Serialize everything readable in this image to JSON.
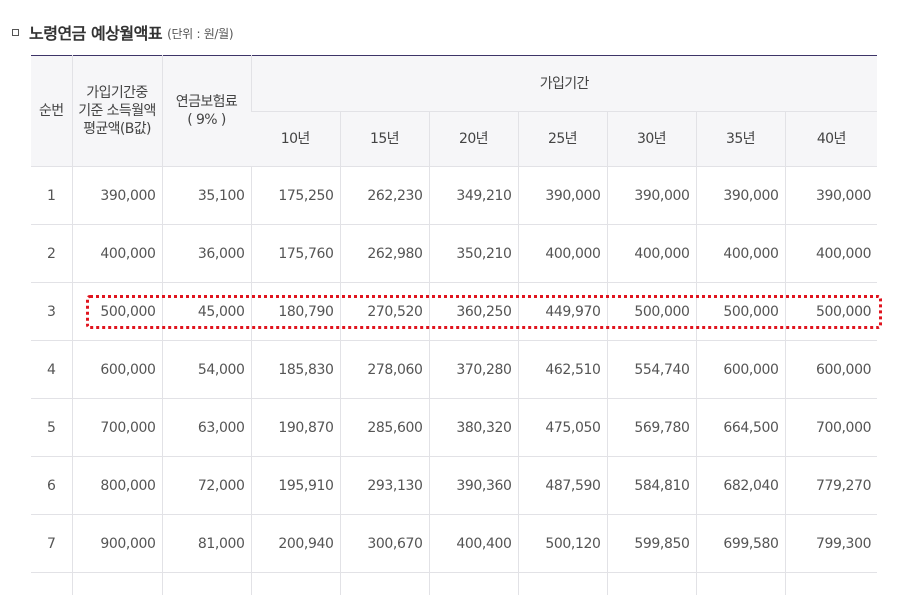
{
  "title": {
    "main": "노령연금 예상월액표",
    "unit": "(단위 : 원/월)"
  },
  "table": {
    "header": {
      "col_no": "순번",
      "col_income": "가입기간중 기준 소득월액 평균액(B값)",
      "col_premium_line1": "연금보험료",
      "col_premium_line2": "( 9% )",
      "col_period": "가입기간",
      "periods": [
        "10년",
        "15년",
        "20년",
        "25년",
        "30년",
        "35년",
        "40년"
      ]
    },
    "rows": [
      {
        "no": "1",
        "income": "390,000",
        "premium": "35,100",
        "values": [
          "175,250",
          "262,230",
          "349,210",
          "390,000",
          "390,000",
          "390,000",
          "390,000"
        ]
      },
      {
        "no": "2",
        "income": "400,000",
        "premium": "36,000",
        "values": [
          "175,760",
          "262,980",
          "350,210",
          "400,000",
          "400,000",
          "400,000",
          "400,000"
        ]
      },
      {
        "no": "3",
        "income": "500,000",
        "premium": "45,000",
        "values": [
          "180,790",
          "270,520",
          "360,250",
          "449,970",
          "500,000",
          "500,000",
          "500,000"
        ]
      },
      {
        "no": "4",
        "income": "600,000",
        "premium": "54,000",
        "values": [
          "185,830",
          "278,060",
          "370,280",
          "462,510",
          "554,740",
          "600,000",
          "600,000"
        ]
      },
      {
        "no": "5",
        "income": "700,000",
        "premium": "63,000",
        "values": [
          "190,870",
          "285,600",
          "380,320",
          "475,050",
          "569,780",
          "664,500",
          "700,000"
        ]
      },
      {
        "no": "6",
        "income": "800,000",
        "premium": "72,000",
        "values": [
          "195,910",
          "293,130",
          "390,360",
          "487,590",
          "584,810",
          "682,040",
          "779,270"
        ]
      },
      {
        "no": "7",
        "income": "900,000",
        "premium": "81,000",
        "values": [
          "200,940",
          "300,670",
          "400,400",
          "500,120",
          "599,850",
          "699,580",
          "799,300"
        ]
      }
    ]
  },
  "colors": {
    "header_bg": "#f6f6f8",
    "top_rule": "#3d3468",
    "highlight": "#e0141e"
  }
}
